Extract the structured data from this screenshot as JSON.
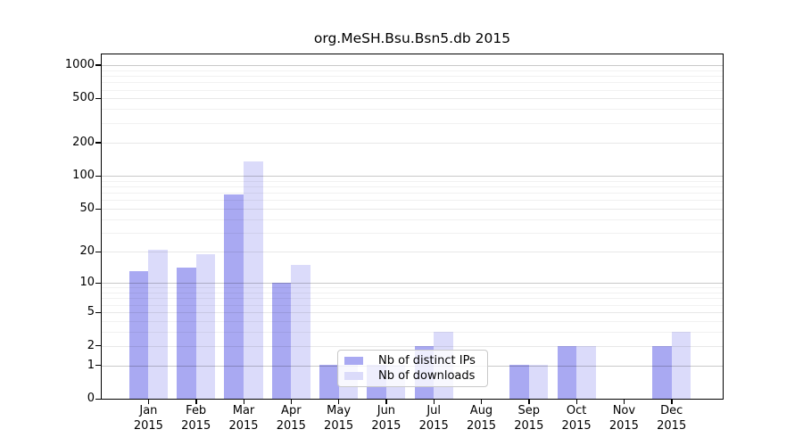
{
  "chart_data": {
    "type": "bar",
    "title": "org.MeSH.Bsu.Bsn5.db 2015",
    "categories": [
      {
        "month": "Jan",
        "year": "2015"
      },
      {
        "month": "Feb",
        "year": "2015"
      },
      {
        "month": "Mar",
        "year": "2015"
      },
      {
        "month": "Apr",
        "year": "2015"
      },
      {
        "month": "May",
        "year": "2015"
      },
      {
        "month": "Jun",
        "year": "2015"
      },
      {
        "month": "Jul",
        "year": "2015"
      },
      {
        "month": "Aug",
        "year": "2015"
      },
      {
        "month": "Sep",
        "year": "2015"
      },
      {
        "month": "Oct",
        "year": "2015"
      },
      {
        "month": "Nov",
        "year": "2015"
      },
      {
        "month": "Dec",
        "year": "2015"
      }
    ],
    "series": [
      {
        "name": "Nb of distinct IPs",
        "color": "#a9a9f2",
        "values": [
          13,
          14,
          68,
          10,
          1,
          1,
          2,
          0,
          1,
          2,
          0,
          2
        ]
      },
      {
        "name": "Nb of downloads",
        "color": "#dbdbfa",
        "values": [
          21,
          19,
          135,
          15,
          1,
          1,
          3,
          0,
          1,
          2,
          0,
          3
        ]
      }
    ],
    "y_axis": {
      "scale": "log10(1+value)",
      "tick_values": [
        0,
        1,
        2,
        5,
        10,
        20,
        50,
        100,
        200,
        500,
        1000
      ],
      "tick_labels": [
        "0",
        "1",
        "2",
        "5",
        "10",
        "20",
        "50",
        "100",
        "200",
        "500",
        "1000"
      ],
      "range_top": 1258
    },
    "gridlines": {
      "major": [
        1,
        10,
        100,
        1000
      ],
      "medium": [
        2,
        5,
        20,
        50,
        200,
        500
      ],
      "minor": [
        3,
        4,
        6,
        7,
        8,
        9,
        30,
        40,
        60,
        70,
        80,
        90,
        300,
        400,
        600,
        700,
        800,
        900
      ]
    },
    "legend_position": "lower-center-inside",
    "grid": true,
    "colors": {
      "axis": "#000000",
      "background": "#ffffff"
    }
  }
}
